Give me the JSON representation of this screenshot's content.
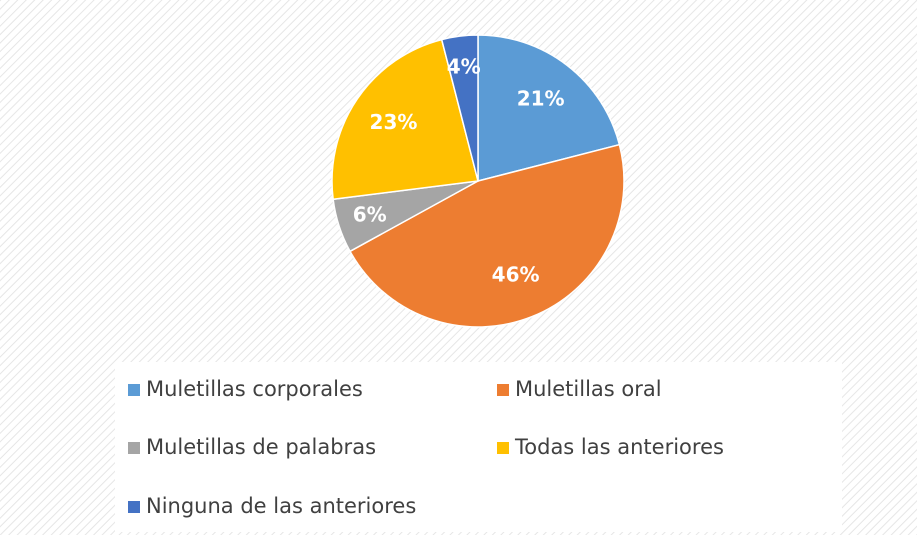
{
  "chart_data": {
    "type": "pie",
    "categories": [
      "Muletillas corporales",
      "Muletillas oral",
      "Muletillas de palabras",
      "Todas las anteriores",
      "Ninguna de las anteriores"
    ],
    "values": [
      21,
      46,
      6,
      23,
      4
    ],
    "value_labels": [
      "21%",
      "46%",
      "6%",
      "23%",
      "4%"
    ],
    "colors": [
      "#5b9bd5",
      "#ed7d31",
      "#a5a5a5",
      "#ffc000",
      "#4472c4"
    ],
    "legend": "bottom"
  }
}
